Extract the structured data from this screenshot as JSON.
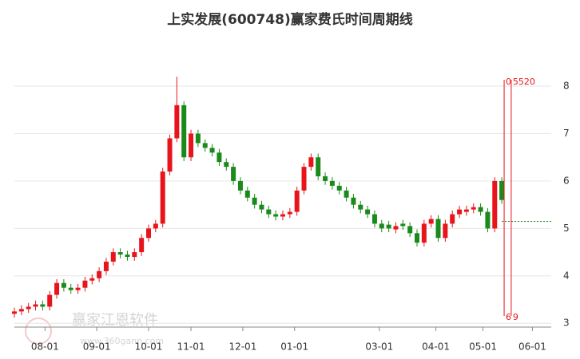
{
  "chart_data": {
    "type": "candlestick",
    "title": "上实发展(600748)赢家费氏时间周期线",
    "watermark": {
      "name": "赢家江恩软件",
      "url": "www.360gann.com"
    },
    "up_color": "#e8141c",
    "down_color": "#1a8a1a",
    "grid": true,
    "xlim": [
      0,
      228
    ],
    "xticks": [
      {
        "value": 13,
        "label": "08-01"
      },
      {
        "value": 35,
        "label": "09-01"
      },
      {
        "value": 57,
        "label": "10-01"
      },
      {
        "value": 75,
        "label": "11-01"
      },
      {
        "value": 97,
        "label": "12-01"
      },
      {
        "value": 119,
        "label": "01-01"
      },
      {
        "value": 155,
        "label": "03-01"
      },
      {
        "value": 179,
        "label": "04-01"
      },
      {
        "value": 199,
        "label": "05-01"
      },
      {
        "value": 220,
        "label": "06-01"
      }
    ],
    "ylim": [
      2.92,
      8.27
    ],
    "yticks": [
      3,
      4,
      5,
      6,
      7,
      8
    ],
    "x": [
      0,
      3,
      6,
      9,
      12,
      15,
      18,
      21,
      24,
      27,
      30,
      33,
      36,
      39,
      42,
      45,
      48,
      51,
      54,
      57,
      60,
      63,
      66,
      69,
      72,
      75,
      78,
      81,
      84,
      87,
      90,
      93,
      96,
      99,
      102,
      105,
      108,
      111,
      114,
      117,
      120,
      123,
      126,
      129,
      132,
      135,
      138,
      141,
      144,
      147,
      150,
      153,
      156,
      159,
      162,
      165,
      168,
      171,
      174,
      177,
      180,
      183,
      186,
      189,
      192,
      195,
      198,
      201,
      204,
      207
    ],
    "open": [
      3.2,
      3.25,
      3.3,
      3.35,
      3.4,
      3.35,
      3.6,
      3.85,
      3.75,
      3.7,
      3.75,
      3.9,
      3.95,
      4.1,
      4.3,
      4.5,
      4.45,
      4.4,
      4.5,
      4.8,
      5.0,
      5.1,
      6.2,
      6.9,
      7.6,
      6.5,
      7.0,
      6.8,
      6.7,
      6.6,
      6.4,
      6.3,
      6.0,
      5.8,
      5.65,
      5.5,
      5.4,
      5.3,
      5.25,
      5.3,
      5.35,
      5.8,
      6.3,
      6.5,
      6.1,
      6.0,
      5.9,
      5.8,
      5.65,
      5.5,
      5.4,
      5.3,
      5.1,
      5.08,
      4.98,
      5.1,
      5.05,
      4.9,
      4.7,
      5.1,
      5.2,
      4.8,
      5.1,
      5.3,
      5.35,
      5.4,
      5.45,
      5.35,
      5.0,
      6.0
    ],
    "high": [
      3.33,
      3.38,
      3.43,
      3.48,
      3.48,
      3.68,
      3.93,
      3.93,
      3.83,
      3.83,
      3.98,
      4.03,
      4.18,
      4.38,
      4.58,
      4.58,
      4.53,
      4.58,
      4.88,
      5.08,
      5.18,
      6.28,
      6.98,
      8.2,
      7.68,
      7.08,
      7.08,
      6.88,
      6.78,
      6.68,
      6.48,
      6.38,
      6.08,
      5.88,
      5.73,
      5.58,
      5.48,
      5.38,
      5.38,
      5.43,
      5.88,
      6.38,
      6.58,
      6.58,
      6.18,
      6.08,
      5.98,
      5.88,
      5.73,
      5.58,
      5.48,
      5.38,
      5.18,
      5.16,
      5.13,
      5.18,
      5.13,
      4.98,
      5.18,
      5.28,
      5.28,
      5.18,
      5.38,
      5.48,
      5.48,
      5.53,
      5.53,
      5.43,
      6.08,
      6.08
    ],
    "low": [
      3.12,
      3.17,
      3.22,
      3.27,
      3.27,
      3.27,
      3.52,
      3.67,
      3.62,
      3.62,
      3.67,
      3.82,
      3.87,
      4.02,
      4.22,
      4.37,
      4.32,
      4.32,
      4.42,
      4.72,
      4.92,
      5.02,
      6.12,
      6.82,
      6.42,
      6.42,
      6.72,
      6.62,
      6.52,
      6.32,
      6.22,
      5.92,
      5.72,
      5.57,
      5.42,
      5.32,
      5.22,
      5.17,
      5.17,
      5.22,
      5.27,
      5.72,
      6.22,
      6.02,
      5.92,
      5.82,
      5.72,
      5.57,
      5.42,
      5.32,
      5.22,
      5.02,
      4.92,
      4.92,
      4.9,
      4.97,
      4.82,
      4.62,
      4.62,
      5.02,
      4.72,
      4.72,
      5.02,
      5.22,
      5.27,
      5.32,
      5.27,
      4.92,
      4.92,
      5.52
    ],
    "close": [
      3.25,
      3.3,
      3.35,
      3.4,
      3.35,
      3.6,
      3.85,
      3.75,
      3.7,
      3.75,
      3.9,
      3.95,
      4.1,
      4.3,
      4.5,
      4.45,
      4.4,
      4.5,
      4.8,
      5.0,
      5.1,
      6.2,
      6.9,
      7.6,
      6.5,
      7.0,
      6.8,
      6.7,
      6.6,
      6.4,
      6.3,
      6.0,
      5.8,
      5.65,
      5.5,
      5.4,
      5.3,
      5.25,
      5.3,
      5.35,
      5.8,
      6.3,
      6.5,
      6.1,
      6.0,
      5.9,
      5.8,
      5.65,
      5.5,
      5.4,
      5.3,
      5.1,
      5.0,
      5.0,
      5.05,
      5.05,
      4.9,
      4.7,
      5.1,
      5.2,
      4.8,
      5.1,
      5.3,
      5.4,
      5.4,
      5.45,
      5.35,
      5.0,
      6.0,
      5.6
    ],
    "reference_line": {
      "value": 5.15,
      "color": "#1a8a1a"
    },
    "cycle_lines": {
      "color": "#e8141c",
      "lines": [
        {
          "x": 208,
          "top_label": "0",
          "bottom_label": "6"
        },
        {
          "x": 211,
          "top_label": "5520",
          "bottom_label": "9"
        }
      ]
    }
  }
}
